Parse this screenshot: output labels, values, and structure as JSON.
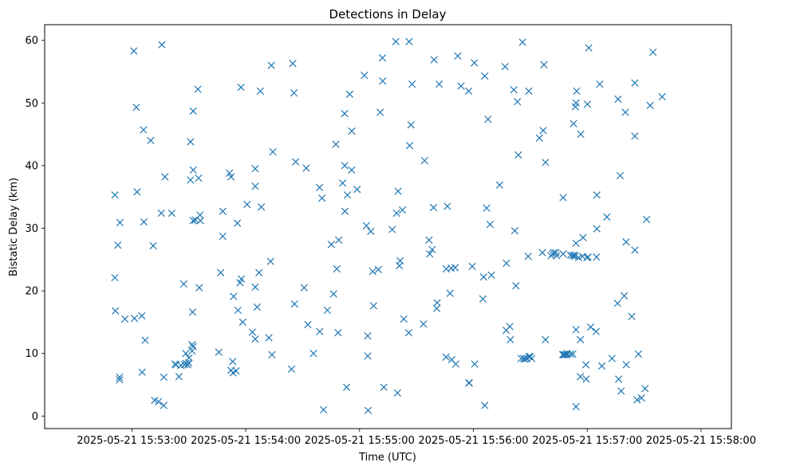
{
  "chart_data": {
    "type": "scatter",
    "title": "Detections in Delay",
    "xlabel": "Time (UTC)",
    "ylabel": "Bistatic Delay (km)",
    "marker": "x",
    "series_color": "#1f77b4",
    "grid": false,
    "x_unit": "seconds after 2025-05-21 15:53:00",
    "xlim": [
      -46,
      316
    ],
    "ylim": [
      -2,
      62.5
    ],
    "x_ticks": [
      {
        "value": 0,
        "label": "2025-05-21 15:53:00"
      },
      {
        "value": 60,
        "label": "2025-05-21 15:54:00"
      },
      {
        "value": 120,
        "label": "2025-05-21 15:55:00"
      },
      {
        "value": 180,
        "label": "2025-05-21 15:56:00"
      },
      {
        "value": 240,
        "label": "2025-05-21 15:57:00"
      },
      {
        "value": 300,
        "label": "2025-05-21 15:58:00"
      }
    ],
    "y_ticks": [
      {
        "value": 0,
        "label": "0"
      },
      {
        "value": 10,
        "label": "10"
      },
      {
        "value": 20,
        "label": "20"
      },
      {
        "value": 30,
        "label": "30"
      },
      {
        "value": 40,
        "label": "40"
      },
      {
        "value": 50,
        "label": "50"
      },
      {
        "value": 60,
        "label": "60"
      }
    ],
    "points": [
      [
        -9.0,
        35.3
      ],
      [
        -9.0,
        22.1
      ],
      [
        -8.7,
        16.8
      ],
      [
        -7.4,
        27.3
      ],
      [
        -6.5,
        6.2
      ],
      [
        -6.5,
        5.8
      ],
      [
        -6.3,
        30.9
      ],
      [
        -3.7,
        15.5
      ],
      [
        1.0,
        58.3
      ],
      [
        1.3,
        15.6
      ],
      [
        2.3,
        49.3
      ],
      [
        2.7,
        35.8
      ],
      [
        5.2,
        16.0
      ],
      [
        5.4,
        7.0
      ],
      [
        6.1,
        45.7
      ],
      [
        6.3,
        31.0
      ],
      [
        7.0,
        12.1
      ],
      [
        9.9,
        44.0
      ],
      [
        11.2,
        27.2
      ],
      [
        12.0,
        2.5
      ],
      [
        14.0,
        2.3
      ],
      [
        15.5,
        32.4
      ],
      [
        15.8,
        59.3
      ],
      [
        16.8,
        6.2
      ],
      [
        16.8,
        1.7
      ],
      [
        17.4,
        38.2
      ],
      [
        21.0,
        32.4
      ],
      [
        22.7,
        8.3
      ],
      [
        23.3,
        8.2
      ],
      [
        24.8,
        6.3
      ],
      [
        25.8,
        8.1
      ],
      [
        27.3,
        21.1
      ],
      [
        27.7,
        8.2
      ],
      [
        28.4,
        10.0
      ],
      [
        28.4,
        8.4
      ],
      [
        29.4,
        8.2
      ],
      [
        29.9,
        8.5
      ],
      [
        30.1,
        9.3
      ],
      [
        30.9,
        43.8
      ],
      [
        30.9,
        37.7
      ],
      [
        31.7,
        11.4
      ],
      [
        31.7,
        10.4
      ],
      [
        32.0,
        16.6
      ],
      [
        32.3,
        48.7
      ],
      [
        32.3,
        39.3
      ],
      [
        32.3,
        31.2
      ],
      [
        32.3,
        11.1
      ],
      [
        33.4,
        31.3
      ],
      [
        34.8,
        52.2
      ],
      [
        35.1,
        38.0
      ],
      [
        35.5,
        20.5
      ],
      [
        35.9,
        32.1
      ],
      [
        36.1,
        31.2
      ],
      [
        45.8,
        10.2
      ],
      [
        46.8,
        22.9
      ],
      [
        47.9,
        32.7
      ],
      [
        47.9,
        28.7
      ],
      [
        51.4,
        38.8
      ],
      [
        52.2,
        38.2
      ],
      [
        52.2,
        7.3
      ],
      [
        53.1,
        8.7
      ],
      [
        53.3,
        6.9
      ],
      [
        53.6,
        19.1
      ],
      [
        54.9,
        7.2
      ],
      [
        55.6,
        30.8
      ],
      [
        55.9,
        16.9
      ],
      [
        57.0,
        21.3
      ],
      [
        57.5,
        52.5
      ],
      [
        57.7,
        21.9
      ],
      [
        58.4,
        15.0
      ],
      [
        60.7,
        33.8
      ],
      [
        63.5,
        13.4
      ],
      [
        65.0,
        39.5
      ],
      [
        65.0,
        36.7
      ],
      [
        65.0,
        20.6
      ],
      [
        65.0,
        12.3
      ],
      [
        66.0,
        17.4
      ],
      [
        67.0,
        22.9
      ],
      [
        67.7,
        51.9
      ],
      [
        68.2,
        33.4
      ],
      [
        72.2,
        12.5
      ],
      [
        73.1,
        24.7
      ],
      [
        73.5,
        56.0
      ],
      [
        73.8,
        9.8
      ],
      [
        74.3,
        42.2
      ],
      [
        84.1,
        7.5
      ],
      [
        84.8,
        56.3
      ],
      [
        85.4,
        51.6
      ],
      [
        85.7,
        17.9
      ],
      [
        86.3,
        40.6
      ],
      [
        90.8,
        20.5
      ],
      [
        91.9,
        39.6
      ],
      [
        92.7,
        14.6
      ],
      [
        95.7,
        10.0
      ],
      [
        98.9,
        36.5
      ],
      [
        99.0,
        13.5
      ],
      [
        100.2,
        34.8
      ],
      [
        101.0,
        1.0
      ],
      [
        103.0,
        16.9
      ],
      [
        105.1,
        27.4
      ],
      [
        106.3,
        19.5
      ],
      [
        107.5,
        43.4
      ],
      [
        108.0,
        23.5
      ],
      [
        108.7,
        13.3
      ],
      [
        109.0,
        28.1
      ],
      [
        111.1,
        37.2
      ],
      [
        112.1,
        48.3
      ],
      [
        112.2,
        40.0
      ],
      [
        112.3,
        32.7
      ],
      [
        113.2,
        4.6
      ],
      [
        113.6,
        35.3
      ],
      [
        114.8,
        51.4
      ],
      [
        115.8,
        39.3
      ],
      [
        115.9,
        45.5
      ],
      [
        118.7,
        36.2
      ],
      [
        122.5,
        54.4
      ],
      [
        123.6,
        30.4
      ],
      [
        124.3,
        12.8
      ],
      [
        124.3,
        9.6
      ],
      [
        124.5,
        0.9
      ],
      [
        125.9,
        29.5
      ],
      [
        126.9,
        23.1
      ],
      [
        127.4,
        17.6
      ],
      [
        129.9,
        23.4
      ],
      [
        130.9,
        48.5
      ],
      [
        132.1,
        57.2
      ],
      [
        132.2,
        53.5
      ],
      [
        132.8,
        4.6
      ],
      [
        137.2,
        29.8
      ],
      [
        139.1,
        59.8
      ],
      [
        139.5,
        32.4
      ],
      [
        140.0,
        3.7
      ],
      [
        140.3,
        35.9
      ],
      [
        141.0,
        24.0
      ],
      [
        141.4,
        24.8
      ],
      [
        142.6,
        32.9
      ],
      [
        143.3,
        15.5
      ],
      [
        145.9,
        13.3
      ],
      [
        146.1,
        59.8
      ],
      [
        146.4,
        43.2
      ],
      [
        147.1,
        46.5
      ],
      [
        147.7,
        53.0
      ],
      [
        153.7,
        14.7
      ],
      [
        154.3,
        40.8
      ],
      [
        156.6,
        28.1
      ],
      [
        157.0,
        25.9
      ],
      [
        158.3,
        26.6
      ],
      [
        159.0,
        33.3
      ],
      [
        159.3,
        56.9
      ],
      [
        160.7,
        17.2
      ],
      [
        160.9,
        18.1
      ],
      [
        162.0,
        53.0
      ],
      [
        165.6,
        9.4
      ],
      [
        165.7,
        23.5
      ],
      [
        166.3,
        33.5
      ],
      [
        167.7,
        19.6
      ],
      [
        168.3,
        23.6
      ],
      [
        168.6,
        9.0
      ],
      [
        170.4,
        23.7
      ],
      [
        170.7,
        8.3
      ],
      [
        171.8,
        57.5
      ],
      [
        173.5,
        52.7
      ],
      [
        177.5,
        51.9
      ],
      [
        177.6,
        5.3
      ],
      [
        177.8,
        5.3
      ],
      [
        179.4,
        23.9
      ],
      [
        180.5,
        56.4
      ],
      [
        180.7,
        8.3
      ],
      [
        185.0,
        18.7
      ],
      [
        185.4,
        22.2
      ],
      [
        186.0,
        54.3
      ],
      [
        186.0,
        1.7
      ],
      [
        187.0,
        33.2
      ],
      [
        187.7,
        47.4
      ],
      [
        188.8,
        30.6
      ],
      [
        189.5,
        22.5
      ],
      [
        193.8,
        36.9
      ],
      [
        196.7,
        55.8
      ],
      [
        197.3,
        13.7
      ],
      [
        197.4,
        24.4
      ],
      [
        199.2,
        14.3
      ],
      [
        199.5,
        12.2
      ],
      [
        201.3,
        52.1
      ],
      [
        201.8,
        29.6
      ],
      [
        202.4,
        20.8
      ],
      [
        203.2,
        50.2
      ],
      [
        203.7,
        41.7
      ],
      [
        205.2,
        9.2
      ],
      [
        205.9,
        59.7
      ],
      [
        206.5,
        9.2
      ],
      [
        207.1,
        9.1
      ],
      [
        208.2,
        9.2
      ],
      [
        208.9,
        25.5
      ],
      [
        209.2,
        51.9
      ],
      [
        209.3,
        9.5
      ],
      [
        209.9,
        9.5
      ],
      [
        210.7,
        9.2
      ],
      [
        214.8,
        44.4
      ],
      [
        216.4,
        26.1
      ],
      [
        216.8,
        45.6
      ],
      [
        217.2,
        56.1
      ],
      [
        218.0,
        40.5
      ],
      [
        218.0,
        12.2
      ],
      [
        221.0,
        25.6
      ],
      [
        221.7,
        25.9
      ],
      [
        222.4,
        26.1
      ],
      [
        223.5,
        26.1
      ],
      [
        223.9,
        25.6
      ],
      [
        227.1,
        9.8
      ],
      [
        227.3,
        34.9
      ],
      [
        227.3,
        25.9
      ],
      [
        227.6,
        9.8
      ],
      [
        228.3,
        9.8
      ],
      [
        229.3,
        9.8
      ],
      [
        229.3,
        10.0
      ],
      [
        231.2,
        9.9
      ],
      [
        231.2,
        25.7
      ],
      [
        232.2,
        25.6
      ],
      [
        232.4,
        9.9
      ],
      [
        232.8,
        46.7
      ],
      [
        233.2,
        25.7
      ],
      [
        233.5,
        25.5
      ],
      [
        233.8,
        49.4
      ],
      [
        234.1,
        50.0
      ],
      [
        234.1,
        27.6
      ],
      [
        234.1,
        13.8
      ],
      [
        234.1,
        1.5
      ],
      [
        234.4,
        51.9
      ],
      [
        235.5,
        25.3
      ],
      [
        236.4,
        12.2
      ],
      [
        236.4,
        6.3
      ],
      [
        236.6,
        45.0
      ],
      [
        237.5,
        25.5
      ],
      [
        237.8,
        28.5
      ],
      [
        239.3,
        8.2
      ],
      [
        239.5,
        5.9
      ],
      [
        239.9,
        25.3
      ],
      [
        240.1,
        49.8
      ],
      [
        240.4,
        25.4
      ],
      [
        240.8,
        58.8
      ],
      [
        241.8,
        14.2
      ],
      [
        244.7,
        13.5
      ],
      [
        244.9,
        25.4
      ],
      [
        245.1,
        35.3
      ],
      [
        245.1,
        29.9
      ],
      [
        246.6,
        53.0
      ],
      [
        247.7,
        8.0
      ],
      [
        250.4,
        31.8
      ],
      [
        253.1,
        9.2
      ],
      [
        256.0,
        18.0
      ],
      [
        256.3,
        50.6
      ],
      [
        256.6,
        5.9
      ],
      [
        257.4,
        38.4
      ],
      [
        257.9,
        4.0
      ],
      [
        259.5,
        19.2
      ],
      [
        260.1,
        48.5
      ],
      [
        260.5,
        27.8
      ],
      [
        260.6,
        8.2
      ],
      [
        263.5,
        15.9
      ],
      [
        265.1,
        44.7
      ],
      [
        265.1,
        53.2
      ],
      [
        265.1,
        26.5
      ],
      [
        266.3,
        2.6
      ],
      [
        267.0,
        9.9
      ],
      [
        268.6,
        2.9
      ],
      [
        270.5,
        4.4
      ],
      [
        271.3,
        31.4
      ],
      [
        273.2,
        49.6
      ],
      [
        274.7,
        58.1
      ],
      [
        279.5,
        51.0
      ]
    ]
  }
}
